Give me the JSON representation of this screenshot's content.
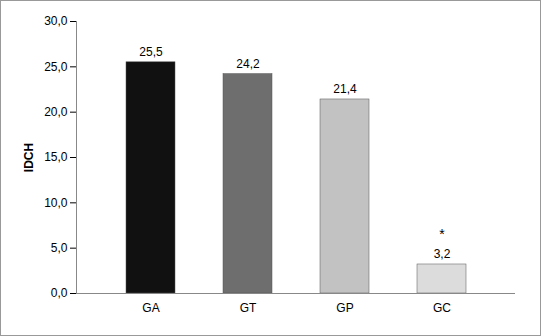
{
  "chart_data": {
    "type": "bar",
    "y_label": "IDCH",
    "categories": [
      "GA",
      "GT",
      "GP",
      "GC"
    ],
    "values": [
      25.5,
      24.2,
      21.4,
      3.2
    ],
    "value_labels": [
      "25,5",
      "24,2",
      "21,4",
      "3,2"
    ],
    "colors": [
      "#111111",
      "#6e6e6e",
      "#c2c2c2",
      "#dcdcdc"
    ],
    "ylim": [
      0,
      30
    ],
    "yticks": [
      {
        "value": 0,
        "label": "0,0"
      },
      {
        "value": 5,
        "label": "5,0"
      },
      {
        "value": 10,
        "label": "10,0"
      },
      {
        "value": 15,
        "label": "15,0"
      },
      {
        "value": 20,
        "label": "20,0"
      },
      {
        "value": 25,
        "label": "25,0"
      },
      {
        "value": 30,
        "label": "30,0"
      }
    ],
    "grid": false,
    "data_labels": true,
    "annotations": [
      {
        "category": "GC",
        "text": "*"
      }
    ]
  }
}
